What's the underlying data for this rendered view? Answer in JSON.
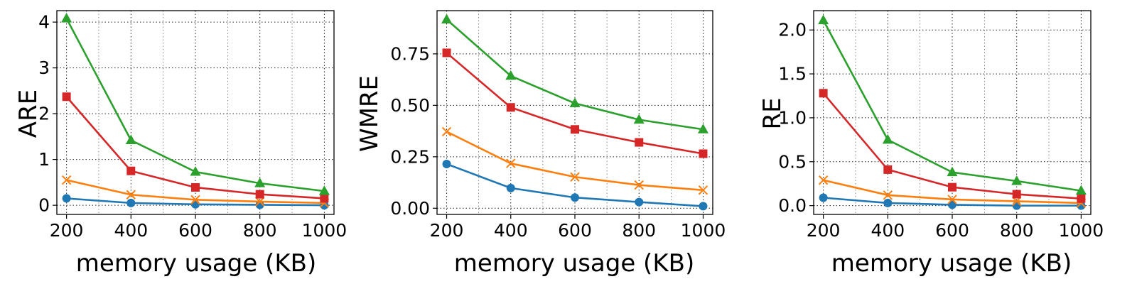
{
  "figure": {
    "colors": {
      "blue": "#1f77b4",
      "orange": "#ff7f0e",
      "red": "#d62728",
      "green": "#2ca02c"
    }
  },
  "chart_data": [
    {
      "type": "line",
      "xlabel": "memory usage (KB)",
      "ylabel": "ARE",
      "x": [
        200,
        400,
        600,
        800,
        1000
      ],
      "xlim": [
        170,
        1030
      ],
      "ylim": [
        -0.2,
        4.25
      ],
      "xticks": [
        200,
        400,
        600,
        800,
        1000
      ],
      "yticks": [
        0,
        1,
        2,
        3,
        4
      ],
      "ytick_labels": [
        "0",
        "1",
        "2",
        "3",
        "4"
      ],
      "grid": true,
      "series": [
        {
          "color": "#1f77b4",
          "marker": "circle",
          "values": [
            0.15,
            0.05,
            0.02,
            0.01,
            0.0
          ]
        },
        {
          "color": "#ff7f0e",
          "marker": "x",
          "values": [
            0.55,
            0.23,
            0.12,
            0.08,
            0.05
          ]
        },
        {
          "color": "#d62728",
          "marker": "square",
          "values": [
            2.37,
            0.75,
            0.39,
            0.24,
            0.15
          ]
        },
        {
          "color": "#2ca02c",
          "marker": "triangle",
          "values": [
            4.08,
            1.42,
            0.73,
            0.48,
            0.31
          ]
        }
      ]
    },
    {
      "type": "line",
      "xlabel": "memory usage (KB)",
      "ylabel": "WMRE",
      "x": [
        200,
        400,
        600,
        800,
        1000
      ],
      "xlim": [
        170,
        1030
      ],
      "ylim": [
        -0.03,
        0.96
      ],
      "xticks": [
        200,
        400,
        600,
        800,
        1000
      ],
      "yticks": [
        0,
        0.25,
        0.5,
        0.75
      ],
      "ytick_labels": [
        "0.00",
        "0.25",
        "0.50",
        "0.75"
      ],
      "grid": true,
      "series": [
        {
          "color": "#1f77b4",
          "marker": "circle",
          "values": [
            0.215,
            0.098,
            0.052,
            0.03,
            0.01
          ]
        },
        {
          "color": "#ff7f0e",
          "marker": "x",
          "values": [
            0.372,
            0.218,
            0.152,
            0.113,
            0.088
          ]
        },
        {
          "color": "#d62728",
          "marker": "square",
          "values": [
            0.755,
            0.49,
            0.383,
            0.32,
            0.265
          ]
        },
        {
          "color": "#2ca02c",
          "marker": "triangle",
          "values": [
            0.917,
            0.643,
            0.51,
            0.43,
            0.383
          ]
        }
      ]
    },
    {
      "type": "line",
      "xlabel": "memory usage (KB)",
      "ylabel": "RE",
      "x": [
        200,
        400,
        600,
        800,
        1000
      ],
      "xlim": [
        170,
        1030
      ],
      "ylim": [
        -0.1,
        2.22
      ],
      "xticks": [
        200,
        400,
        600,
        800,
        1000
      ],
      "yticks": [
        0,
        0.5,
        1.0,
        1.5,
        2.0
      ],
      "ytick_labels": [
        "0.0",
        "0.5",
        "1.0",
        "1.5",
        "2.0"
      ],
      "grid": true,
      "series": [
        {
          "color": "#1f77b4",
          "marker": "circle",
          "values": [
            0.09,
            0.03,
            0.01,
            0.0,
            0.0
          ]
        },
        {
          "color": "#ff7f0e",
          "marker": "x",
          "values": [
            0.29,
            0.12,
            0.07,
            0.05,
            0.03
          ]
        },
        {
          "color": "#d62728",
          "marker": "square",
          "values": [
            1.28,
            0.41,
            0.21,
            0.13,
            0.08
          ]
        },
        {
          "color": "#2ca02c",
          "marker": "triangle",
          "values": [
            2.11,
            0.75,
            0.38,
            0.28,
            0.17
          ]
        }
      ]
    }
  ]
}
